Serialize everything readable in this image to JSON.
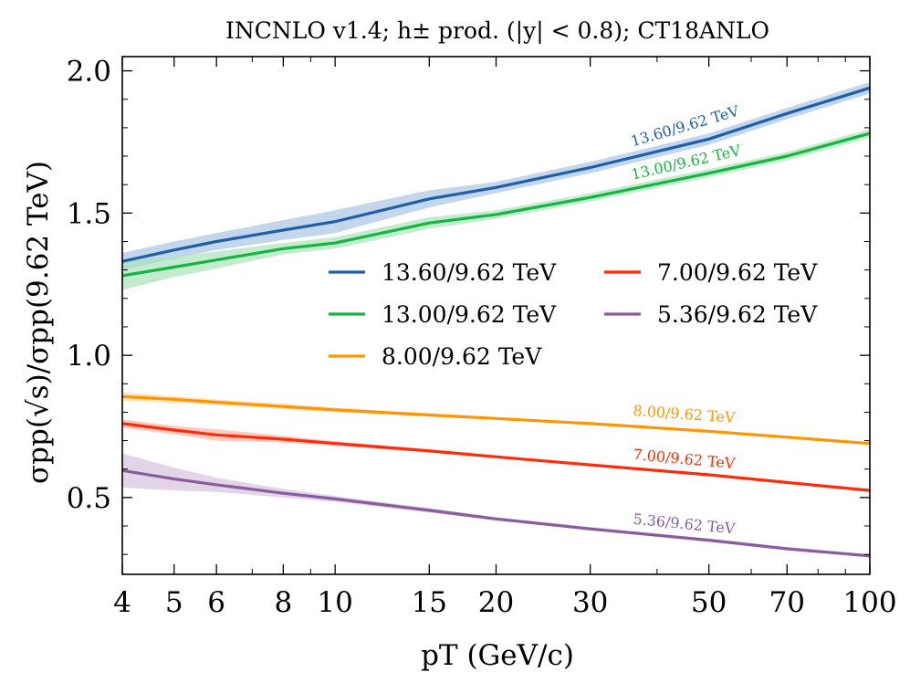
{
  "chart_data": {
    "type": "line",
    "title": "INCNLO v1.4; h± prod. (|y| < 0.8); CT18ANLO",
    "xlabel": "pT (GeV/c)",
    "ylabel": "σpp(√s)/σpp(9.62 TeV)",
    "xscale": "log",
    "xlim": [
      4,
      100
    ],
    "ylim": [
      0.23,
      2.05
    ],
    "x_ticks": [
      4,
      5,
      6,
      8,
      10,
      15,
      20,
      30,
      50,
      70,
      100
    ],
    "x_tick_labels": [
      "4",
      "5",
      "6",
      "8",
      "10",
      "15",
      "20",
      "30",
      "50",
      "70",
      "100"
    ],
    "y_ticks": [
      0.5,
      1.0,
      1.5,
      2.0
    ],
    "y_tick_labels": [
      "0.5",
      "1.0",
      "1.5",
      "2.0"
    ],
    "x": [
      4,
      5,
      6,
      8,
      10,
      15,
      20,
      30,
      50,
      70,
      100
    ],
    "series": [
      {
        "name": "13.60/9.62 TeV",
        "color": "#1f5fa6",
        "band_color": "#a9c5e3",
        "values": [
          1.33,
          1.37,
          1.4,
          1.44,
          1.47,
          1.55,
          1.59,
          1.66,
          1.76,
          1.85,
          1.94
        ],
        "band": [
          0.03,
          0.03,
          0.03,
          0.035,
          0.04,
          0.03,
          0.02,
          0.02,
          0.02,
          0.02,
          0.02
        ],
        "annotation": "13.60/9.62 TeV"
      },
      {
        "name": "13.00/9.62 TeV",
        "color": "#16b441",
        "band_color": "#a9e4b9",
        "values": [
          1.28,
          1.31,
          1.335,
          1.375,
          1.395,
          1.465,
          1.495,
          1.555,
          1.64,
          1.7,
          1.78
        ],
        "band": [
          0.05,
          0.035,
          0.03,
          0.02,
          0.02,
          0.02,
          0.015,
          0.015,
          0.015,
          0.015,
          0.015
        ],
        "annotation": "13.00/9.62 TeV"
      },
      {
        "name": "8.00/9.62 TeV",
        "color": "#ff9500",
        "band_color": "#ffd8a3",
        "values": [
          0.855,
          0.845,
          0.835,
          0.82,
          0.808,
          0.79,
          0.778,
          0.76,
          0.733,
          0.712,
          0.69
        ],
        "band": [
          0.015,
          0.012,
          0.01,
          0.01,
          0.008,
          0.006,
          0.005,
          0.005,
          0.005,
          0.005,
          0.005
        ],
        "annotation": "8.00/9.62 TeV"
      },
      {
        "name": "7.00/9.62 TeV",
        "color": "#ff2b0a",
        "band_color": "#ffb3a5",
        "values": [
          0.76,
          0.737,
          0.72,
          0.705,
          0.69,
          0.664,
          0.643,
          0.615,
          0.58,
          0.553,
          0.525
        ],
        "band": [
          0.015,
          0.015,
          0.02,
          0.012,
          0.008,
          0.006,
          0.005,
          0.005,
          0.005,
          0.005,
          0.005
        ],
        "annotation": "7.00/9.62 TeV"
      },
      {
        "name": "5.36/9.62 TeV",
        "color": "#8a5b9f",
        "band_color": "#d5c3de",
        "values": [
          0.595,
          0.565,
          0.545,
          0.515,
          0.495,
          0.455,
          0.425,
          0.39,
          0.35,
          0.32,
          0.295
        ],
        "band": [
          0.06,
          0.04,
          0.025,
          0.015,
          0.01,
          0.008,
          0.006,
          0.006,
          0.006,
          0.006,
          0.006
        ],
        "annotation": "5.36/9.62 TeV"
      }
    ],
    "legend": {
      "placement": "center-right",
      "columns": 2,
      "order": [
        "13.60/9.62 TeV",
        "7.00/9.62 TeV",
        "13.00/9.62 TeV",
        "5.36/9.62 TeV",
        "8.00/9.62 TeV"
      ]
    }
  }
}
